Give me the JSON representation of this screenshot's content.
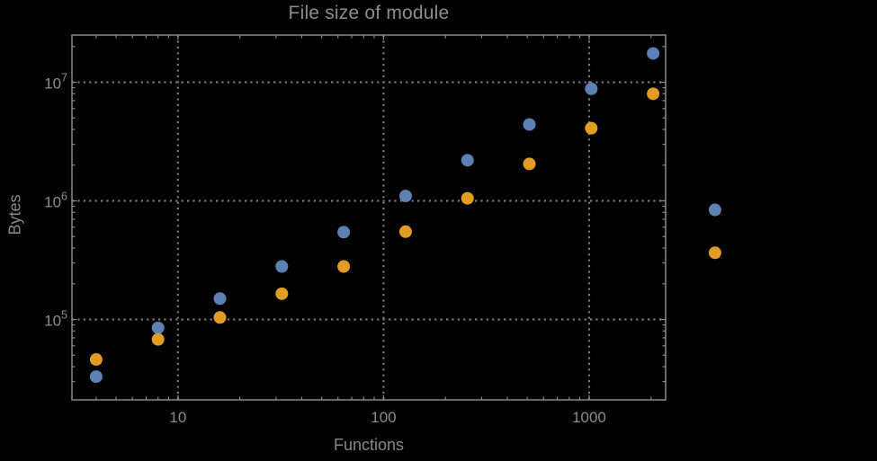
{
  "chart_data": {
    "type": "scatter",
    "title": "File size of module",
    "xlabel": "Functions",
    "ylabel": "Bytes",
    "x_scale": "log",
    "y_scale": "log",
    "xlim": [
      3.05,
      2355
    ],
    "ylim": [
      21000,
      25000000
    ],
    "grid": "dotted",
    "legend": "none",
    "x": [
      4,
      8,
      16,
      32,
      64,
      128,
      256,
      512,
      1024,
      2048,
      4096
    ],
    "series": [
      {
        "name": "blue",
        "color": "#5E81B5",
        "values": [
          33000,
          85000,
          150000,
          280000,
          545000,
          1100000,
          2200000,
          4400000,
          8800000,
          17500000,
          840000
        ]
      },
      {
        "name": "orange",
        "color": "#E19C24",
        "values": [
          46000,
          68000,
          104000,
          165000,
          280000,
          550000,
          1050000,
          2050000,
          4100000,
          8000000,
          365000
        ]
      }
    ],
    "x_major_ticks": [
      {
        "value": 10,
        "label": "10"
      },
      {
        "value": 100,
        "label": "100"
      },
      {
        "value": 1000,
        "label": "1000"
      }
    ],
    "y_major_ticks": [
      {
        "value": 100000,
        "base": "10",
        "exponent": "5"
      },
      {
        "value": 1000000,
        "base": "10",
        "exponent": "6"
      },
      {
        "value": 10000000,
        "base": "10",
        "exponent": "7"
      }
    ],
    "marker_diameter_px": 14,
    "colors": {
      "background": "#000000",
      "frame": "#8a8a8a",
      "grid": "#7a7a7a",
      "text": "#8d8d8d",
      "series_blue": "#5E81B5",
      "series_orange": "#E19C24"
    }
  }
}
